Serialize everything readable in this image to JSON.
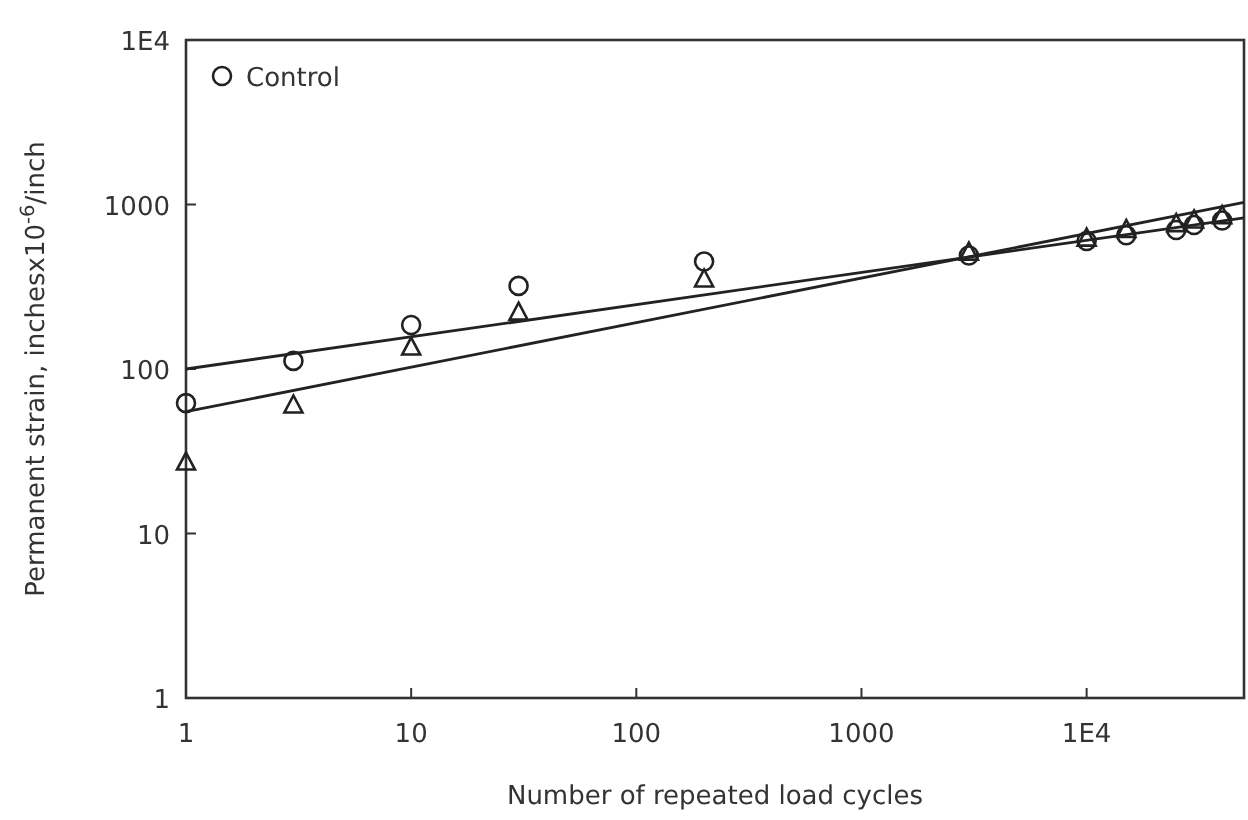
{
  "chart_data": {
    "type": "scatter",
    "xlabel": "Number of repeated load cycles",
    "ylabel": "Permanent strain, inchesx10$^{-6}$/inch",
    "log": "xy",
    "xlim": [
      1,
      50000
    ],
    "ylim": [
      1,
      10000
    ],
    "xticks": [
      1,
      10,
      100,
      1000,
      {
        "value": 10000,
        "label": "1E4"
      }
    ],
    "yticks": [
      1,
      10,
      100,
      1000,
      {
        "value": 10000,
        "label": "1E4"
      }
    ],
    "legend": "top left",
    "grid": false,
    "series": [
      {
        "name": "Control",
        "marker": "circle",
        "color": "#222222",
        "x": [
          1,
          3,
          10,
          30,
          200,
          3000,
          10000,
          15000,
          25000,
          30000,
          40000
        ],
        "values": [
          62,
          112,
          185,
          320,
          450,
          490,
          600,
          650,
          700,
          750,
          800
        ]
      },
      {
        "marker": "triangle",
        "color": "#222222",
        "x": [
          1,
          3,
          10,
          30,
          200,
          3000,
          10000,
          15000,
          25000,
          30000,
          40000
        ],
        "values": [
          27,
          60,
          135,
          220,
          350,
          510,
          620,
          700,
          760,
          800,
          850
        ]
      },
      {
        "type": "line",
        "marker": "none",
        "color": "#222222",
        "x": [
          1,
          50000
        ],
        "values": [
          100,
          830
        ]
      },
      {
        "type": "line",
        "marker": "none",
        "color": "#222222",
        "x": [
          1,
          50000
        ],
        "values": [
          55,
          1030
        ]
      }
    ]
  }
}
